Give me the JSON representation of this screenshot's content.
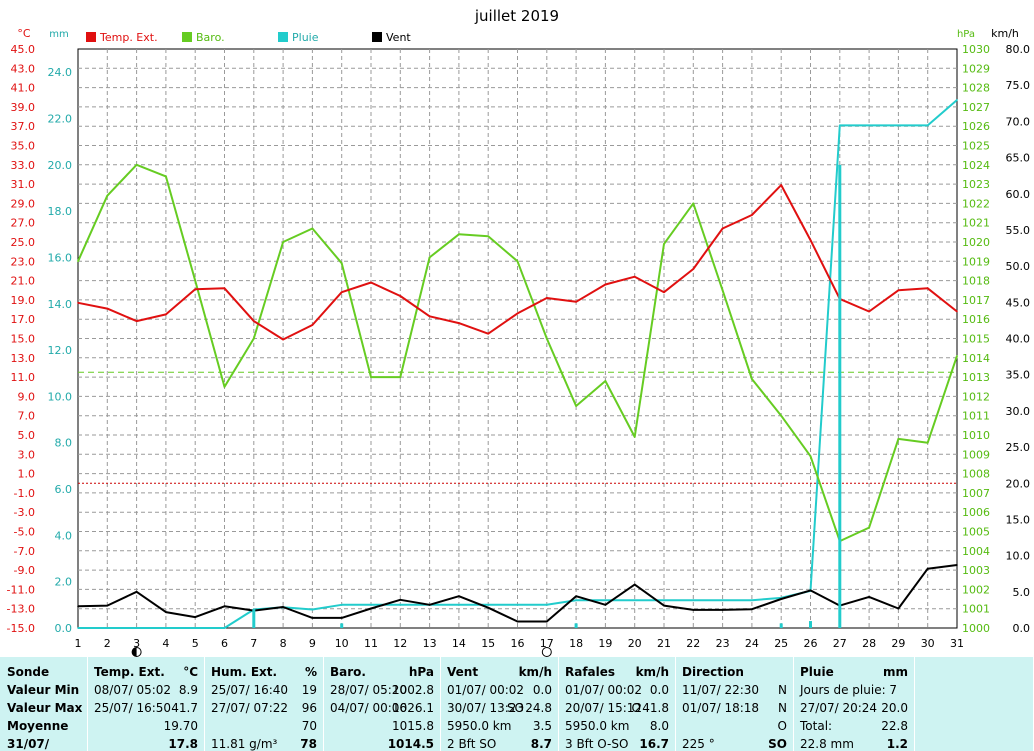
{
  "chart_data": {
    "type": "line",
    "title": "juillet 2019",
    "x": [
      1,
      2,
      3,
      4,
      5,
      6,
      7,
      8,
      9,
      10,
      11,
      12,
      13,
      14,
      15,
      16,
      17,
      18,
      19,
      20,
      21,
      22,
      23,
      24,
      25,
      26,
      27,
      28,
      29,
      30,
      31
    ],
    "x_ticks": [
      "1",
      "2",
      "3",
      "4",
      "5",
      "6",
      "7",
      "8",
      "9",
      "10",
      "11",
      "12",
      "13",
      "14",
      "15",
      "16",
      "17",
      "18",
      "19",
      "20",
      "21",
      "22",
      "23",
      "24",
      "25",
      "26",
      "27",
      "28",
      "29",
      "30",
      "31"
    ],
    "axes": {
      "temp": {
        "unit": "°C",
        "lim": [
          -15,
          45
        ],
        "ticks": [
          "45.0",
          "43.0",
          "41.0",
          "39.0",
          "37.0",
          "35.0",
          "33.0",
          "31.0",
          "29.0",
          "27.0",
          "25.0",
          "23.0",
          "21.0",
          "19.0",
          "17.0",
          "15.0",
          "13.0",
          "11.0",
          "9.0",
          "7.0",
          "5.0",
          "3.0",
          "1.0",
          "-1.0",
          "-3.0",
          "-5.0",
          "-7.0",
          "-9.0",
          "-11.0",
          "-13.0",
          "-15.0"
        ]
      },
      "rain": {
        "unit": "mm",
        "lim": [
          0,
          25
        ],
        "ticks": [
          "24.0",
          "22.0",
          "20.0",
          "18.0",
          "16.0",
          "14.0",
          "12.0",
          "10.0",
          "8.0",
          "6.0",
          "4.0",
          "2.0",
          "0.0"
        ]
      },
      "baro": {
        "unit": "hPa",
        "lim": [
          1000,
          1030
        ],
        "ticks": [
          "1030",
          "1029",
          "1028",
          "1027",
          "1026",
          "1025",
          "1024",
          "1023",
          "1022",
          "1021",
          "1020",
          "1019",
          "1018",
          "1017",
          "1016",
          "1015",
          "1014",
          "1013",
          "1012",
          "1011",
          "1010",
          "1009",
          "1008",
          "1007",
          "1006",
          "1005",
          "1004",
          "1003",
          "1002",
          "1001",
          "1000"
        ]
      },
      "wind": {
        "unit": "km/h",
        "lim": [
          0,
          80
        ],
        "ticks": [
          "80.0",
          "75.0",
          "70.0",
          "65.0",
          "60.0",
          "55.0",
          "50.0",
          "45.0",
          "40.0",
          "35.0",
          "30.0",
          "25.0",
          "20.0",
          "15.0",
          "10.0",
          "5.0",
          "0.0"
        ]
      }
    },
    "series": [
      {
        "name": "Temp. Ext.",
        "axis": "temp",
        "color": "#e01010",
        "values": [
          18.7,
          18.1,
          16.8,
          17.5,
          20.1,
          20.2,
          16.8,
          14.9,
          16.4,
          19.8,
          20.8,
          19.4,
          17.3,
          16.6,
          15.5,
          17.6,
          19.2,
          18.8,
          20.6,
          21.4,
          19.8,
          22.2,
          26.4,
          27.8,
          30.9,
          25.2,
          19.1,
          17.8,
          20.0,
          20.2,
          17.8
        ]
      },
      {
        "name": "Baro.",
        "axis": "baro",
        "color": "#66cc22",
        "values": [
          1019.0,
          1022.4,
          1024.0,
          1023.4,
          1018.0,
          1012.5,
          1015.0,
          1020.0,
          1020.7,
          1018.9,
          1013.0,
          1013.0,
          1019.2,
          1020.4,
          1020.3,
          1019.0,
          1015.0,
          1011.5,
          1012.8,
          1009.9,
          1019.9,
          1022.0,
          1017.5,
          1012.9,
          1011.0,
          1008.9,
          1004.5,
          1005.2,
          1009.8,
          1009.6,
          1014.1
        ]
      },
      {
        "name": "Pluie",
        "axis": "rain",
        "color": "#22cccc",
        "values": [
          0.0,
          0.0,
          0.0,
          0.0,
          0.0,
          0.0,
          0.8,
          0.9,
          0.8,
          1.0,
          1.0,
          1.0,
          1.0,
          1.0,
          1.0,
          1.0,
          1.0,
          1.2,
          1.2,
          1.2,
          1.2,
          1.2,
          1.2,
          1.2,
          1.3,
          1.6,
          21.7,
          21.7,
          21.7,
          21.7,
          22.8
        ]
      },
      {
        "name": "Vent",
        "axis": "wind",
        "color": "#000000",
        "values": [
          3.0,
          3.1,
          5.0,
          2.2,
          1.5,
          3.0,
          2.4,
          2.9,
          1.4,
          1.4,
          2.7,
          3.9,
          3.2,
          4.4,
          2.8,
          0.9,
          0.9,
          4.4,
          3.2,
          6.0,
          3.1,
          2.5,
          2.5,
          2.6,
          4.0,
          5.2,
          3.1,
          4.3,
          2.7,
          8.2,
          8.7
        ]
      }
    ],
    "rain_spikes": [
      {
        "x": 7,
        "mm": 0.8
      },
      {
        "x": 10,
        "mm": 0.2
      },
      {
        "x": 18,
        "mm": 0.2
      },
      {
        "x": 25,
        "mm": 0.2
      },
      {
        "x": 26,
        "mm": 0.3
      },
      {
        "x": 27,
        "mm": 20.0
      }
    ],
    "reference_lines": [
      {
        "axis": "baro",
        "value": 1013.25,
        "color": "#66cc22"
      },
      {
        "axis": "temp",
        "value": 0,
        "color": "#cc0000"
      }
    ],
    "moon_phases": [
      {
        "x": 3,
        "phase": "first-quarter"
      },
      {
        "x": 17,
        "phase": "full"
      }
    ],
    "grid": true,
    "legend_position": "top"
  },
  "table": {
    "row_labels": [
      "Sonde",
      "Valeur Min",
      "Valeur Max",
      "Moyenne",
      "31/07/"
    ],
    "temp": {
      "title": "Temp. Ext.",
      "unit": "°C",
      "min": {
        "when": "08/07/  05:02",
        "val": "8.9"
      },
      "max": {
        "when": "25/07/  16:50",
        "val": "41.7"
      },
      "avg": {
        "when": "",
        "val": "19.70"
      },
      "today": {
        "when": "",
        "val": "17.8"
      }
    },
    "hum": {
      "title": "Hum. Ext.",
      "unit": "%",
      "min": {
        "when": "25/07/  16:40",
        "val": "19"
      },
      "max": {
        "when": "27/07/  07:22",
        "val": "96"
      },
      "avg": {
        "when": "",
        "val": "70"
      },
      "today": {
        "when": "11.81 g/m³",
        "val": "78"
      }
    },
    "baro": {
      "title": "Baro.",
      "unit": "hPa",
      "min": {
        "when": "28/07/  05:20",
        "val": "1002.8"
      },
      "max": {
        "when": "04/07/  00:06",
        "val": "1026.1"
      },
      "avg": {
        "when": "",
        "val": "1015.8"
      },
      "today": {
        "when": "",
        "val": "1014.5"
      }
    },
    "vent": {
      "title": "Vent",
      "unit": "km/h",
      "min": {
        "when": "01/07/  00:02",
        "val": "0.0"
      },
      "max": {
        "when": "30/07/  13:23",
        "mid": "SO",
        "val": "24.8"
      },
      "avg": {
        "when": "5950.0 km",
        "val": "3.5"
      },
      "today": {
        "when": "2 Bft SO",
        "val": "8.7"
      }
    },
    "rafales": {
      "title": "Rafales",
      "unit": "km/h",
      "min": {
        "when": "01/07/  00:02",
        "val": "0.0"
      },
      "max": {
        "when": "20/07/  15:12",
        "mid": "O",
        "val": "41.8"
      },
      "avg": {
        "when": "5950.0 km",
        "val": "8.0"
      },
      "today": {
        "when": "3 Bft O-SO",
        "val": "16.7"
      }
    },
    "direction": {
      "title": "Direction",
      "min": {
        "when": "11/07/  22:30",
        "val": "N"
      },
      "max": {
        "when": "01/07/  18:18",
        "val": "N"
      },
      "avg": {
        "when": "",
        "val": "O"
      },
      "today": {
        "when": "225 °",
        "val": "SO"
      }
    },
    "pluie": {
      "title": "Pluie",
      "unit": "mm",
      "min": {
        "when": "Jours de pluie: 7",
        "val": ""
      },
      "max": {
        "when": "27/07/  20:24",
        "val": "20.0"
      },
      "avg": {
        "when": "Total:",
        "val": "22.8"
      },
      "today": {
        "when": "22.8 mm",
        "val": "1.2"
      }
    }
  }
}
